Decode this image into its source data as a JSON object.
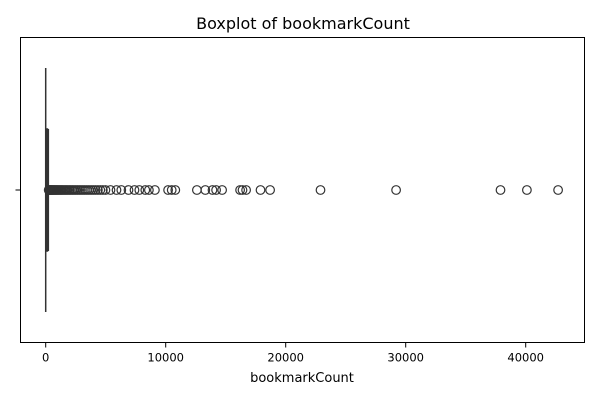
{
  "chart_data": {
    "type": "boxplot",
    "orientation": "horizontal",
    "title": "Boxplot of bookmarkCount",
    "xlabel": "bookmarkCount",
    "ylabel": "",
    "xlim": [
      -2100,
      44900
    ],
    "xticks": [
      0,
      10000,
      20000,
      30000,
      40000
    ],
    "xtick_labels": [
      "0",
      "10000",
      "20000",
      "30000",
      "40000"
    ],
    "grid": false,
    "box": {
      "min": 0,
      "q1": 20,
      "median": 50,
      "q3": 100,
      "whisker_high": 220
    },
    "outliers": [
      250,
      300,
      350,
      400,
      450,
      500,
      560,
      620,
      690,
      760,
      830,
      900,
      980,
      1060,
      1150,
      1240,
      1330,
      1430,
      1530,
      1640,
      1750,
      1860,
      1980,
      2100,
      2230,
      2360,
      2500,
      2640,
      2790,
      2940,
      3100,
      3260,
      3430,
      3600,
      3780,
      3960,
      4150,
      4350,
      4550,
      4760,
      4980,
      5400,
      5900,
      6300,
      6900,
      7400,
      7800,
      8300,
      8600,
      9100,
      10200,
      10500,
      10800,
      12600,
      13300,
      13900,
      14200,
      14700,
      16200,
      16400,
      16700,
      17900,
      18700,
      22900,
      29200,
      37900,
      40100,
      42700
    ],
    "color": "#333333"
  }
}
